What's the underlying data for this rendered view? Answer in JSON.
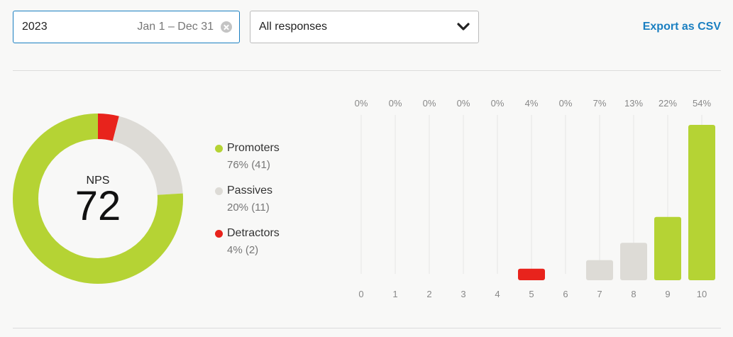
{
  "filters": {
    "date": {
      "year": "2023",
      "range": "Jan 1 – Dec 31"
    },
    "responses": {
      "selected": "All responses"
    },
    "export_label": "Export as CSV"
  },
  "colors": {
    "promoters": "#b5d334",
    "passives": "#dddbd6",
    "detractors": "#e8231c",
    "accent": "#1a7fc1"
  },
  "nps": {
    "label": "NPS",
    "value": "72"
  },
  "legend": [
    {
      "name": "Promoters",
      "stat": "76% (41)",
      "color": "#b5d334"
    },
    {
      "name": "Passives",
      "stat": "20% (11)",
      "color": "#dddbd6"
    },
    {
      "name": "Detractors",
      "stat": "4% (2)",
      "color": "#e8231c"
    }
  ],
  "chart_data": [
    {
      "type": "pie",
      "donut": true,
      "slices": [
        {
          "name": "Detractors",
          "percent": 4,
          "count": 2
        },
        {
          "name": "Passives",
          "percent": 20,
          "count": 11
        },
        {
          "name": "Promoters",
          "percent": 76,
          "count": 41
        }
      ],
      "center_label": "NPS",
      "center_value": 72
    },
    {
      "type": "bar",
      "categories": [
        "0",
        "1",
        "2",
        "3",
        "4",
        "5",
        "6",
        "7",
        "8",
        "9",
        "10"
      ],
      "values": [
        0,
        0,
        0,
        0,
        0,
        4,
        0,
        7,
        13,
        22,
        54
      ],
      "labels": [
        "0%",
        "0%",
        "0%",
        "0%",
        "0%",
        "4%",
        "0%",
        "7%",
        "13%",
        "22%",
        "54%"
      ],
      "groups": [
        "detractors",
        "detractors",
        "detractors",
        "detractors",
        "detractors",
        "detractors",
        "detractors",
        "passives",
        "passives",
        "promoters",
        "promoters"
      ],
      "ylim": [
        0,
        54
      ],
      "grid": true
    }
  ]
}
